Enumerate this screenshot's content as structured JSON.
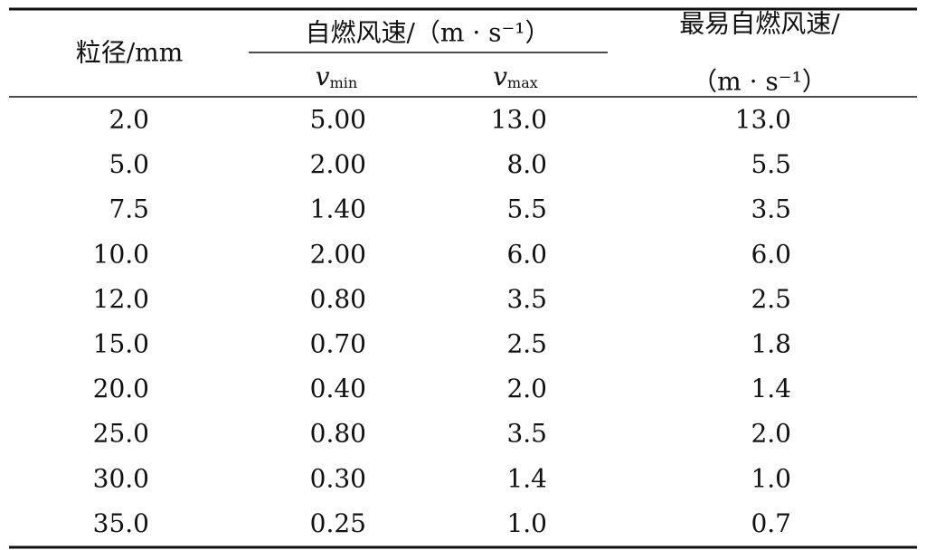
{
  "table": {
    "header": {
      "particle_size": "粒径/mm",
      "ignition_speed": "自燃风速/（m · s⁻¹）",
      "vmin": {
        "symbol": "v",
        "subscript": "min"
      },
      "vmax": {
        "symbol": "v",
        "subscript": "max"
      },
      "easiest_speed": "最易自燃风速/",
      "easiest_unit": "（m · s⁻¹）"
    },
    "rows": [
      [
        "2.0",
        "5.00",
        "13.0",
        "13.0"
      ],
      [
        "5.0",
        "2.00",
        "8.0",
        "5.5"
      ],
      [
        "7.5",
        "1.40",
        "5.5",
        "3.5"
      ],
      [
        "10.0",
        "2.00",
        "6.0",
        "6.0"
      ],
      [
        "12.0",
        "0.80",
        "3.5",
        "2.5"
      ],
      [
        "15.0",
        "0.70",
        "2.5",
        "1.8"
      ],
      [
        "20.0",
        "0.40",
        "2.0",
        "1.4"
      ],
      [
        "25.0",
        "0.80",
        "3.5",
        "2.0"
      ],
      [
        "30.0",
        "0.30",
        "1.4",
        "1.0"
      ],
      [
        "35.0",
        "0.25",
        "1.0",
        "0.7"
      ]
    ]
  }
}
